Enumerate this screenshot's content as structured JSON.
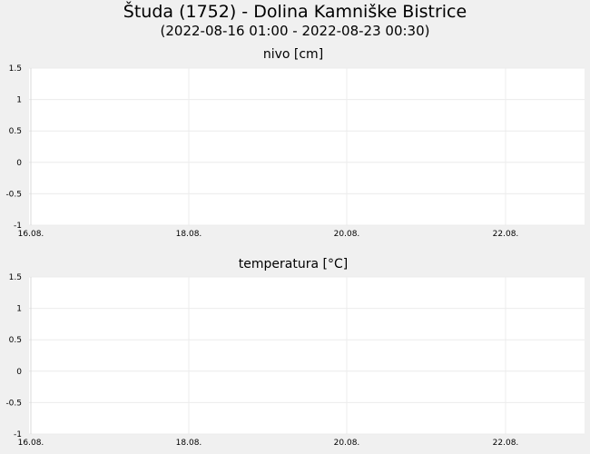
{
  "title": "Študa (1752) - Dolina Kamniške Bistrice",
  "subtitle": "(2022-08-16 01:00 - 2022-08-23 00:30)",
  "chart_data": [
    {
      "type": "line",
      "title": "nivo [cm]",
      "xlabel": "",
      "ylabel": "",
      "x_ticks": [
        "16.08.",
        "18.08.",
        "20.08.",
        "22.08."
      ],
      "y_ticks": [
        "1.5",
        "1",
        "0.5",
        "0",
        "-0.5",
        "-1"
      ],
      "ylim": [
        -1,
        1.5
      ],
      "xlim": [
        "2022-08-16 01:00",
        "2022-08-23 00:30"
      ],
      "grid": true,
      "series": []
    },
    {
      "type": "line",
      "title": "temperatura [°C]",
      "xlabel": "",
      "ylabel": "",
      "x_ticks": [
        "16.08.",
        "18.08.",
        "20.08.",
        "22.08."
      ],
      "y_ticks": [
        "1.5",
        "1",
        "0.5",
        "0",
        "-0.5",
        "-1"
      ],
      "ylim": [
        -1,
        1.5
      ],
      "xlim": [
        "2022-08-16 01:00",
        "2022-08-23 00:30"
      ],
      "grid": true,
      "series": []
    }
  ]
}
